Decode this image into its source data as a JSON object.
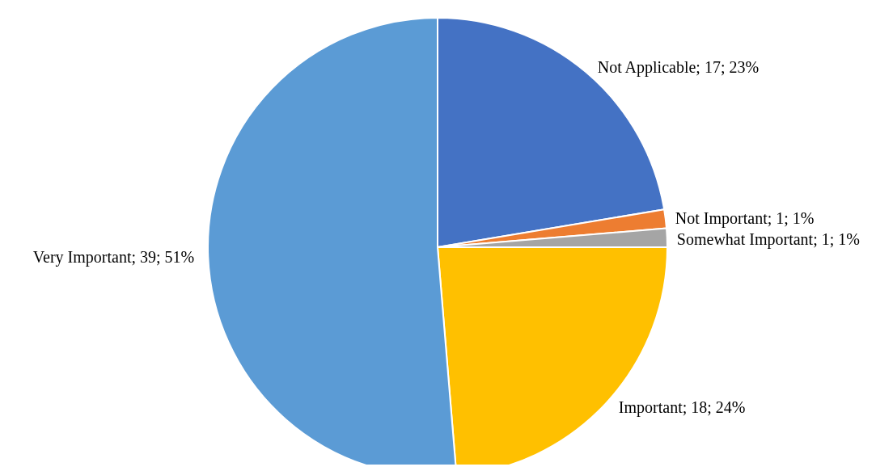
{
  "chart_data": {
    "type": "pie",
    "categories": [
      "Not Applicable",
      "Not Important",
      "Somewhat Important",
      "Important",
      "Very Important"
    ],
    "values": [
      17,
      1,
      1,
      18,
      39
    ],
    "value_labels": [
      "17; 23%",
      "1; 1%",
      "1; 1%",
      "18; 24%",
      "39; 51%"
    ],
    "colors": [
      "#4472c4",
      "#ed7d31",
      "#a5a5a5",
      "#ffc000",
      "#5b9bd5"
    ],
    "legend": false
  }
}
